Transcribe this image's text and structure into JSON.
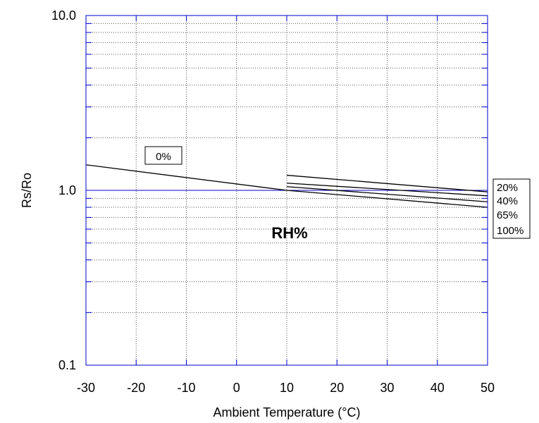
{
  "chart_data": {
    "type": "line",
    "title": "",
    "xlabel": "Ambient Temperature (°C)",
    "ylabel": "Rs/Ro",
    "xlim": [
      -30,
      50
    ],
    "ylim": [
      0.1,
      10.0
    ],
    "yscale": "log",
    "grid": true,
    "x_ticks": [
      "-30",
      "-20",
      "-10",
      "0",
      "10",
      "20",
      "30",
      "40",
      "50"
    ],
    "y_ticks": [
      "0.1",
      "1.0",
      "10.0"
    ],
    "series": [
      {
        "name": "0%",
        "x": [
          -30,
          10
        ],
        "y": [
          1.4,
          1.0
        ]
      },
      {
        "name": "20%",
        "x": [
          10,
          50
        ],
        "y": [
          1.22,
          0.98
        ]
      },
      {
        "name": "40%",
        "x": [
          10,
          50
        ],
        "y": [
          1.1,
          0.93
        ]
      },
      {
        "name": "65%",
        "x": [
          10,
          50
        ],
        "y": [
          1.05,
          0.86
        ]
      },
      {
        "name": "100%",
        "x": [
          10,
          50
        ],
        "y": [
          1.0,
          0.8
        ]
      }
    ],
    "annotations": {
      "series_label_left": "0%",
      "center_label": "RH%",
      "legend_box": [
        "20%",
        "40%",
        "65%",
        "100%"
      ]
    },
    "colors": {
      "line": "#000000",
      "grid": "#555555",
      "major_grid": "#0000cc"
    }
  }
}
